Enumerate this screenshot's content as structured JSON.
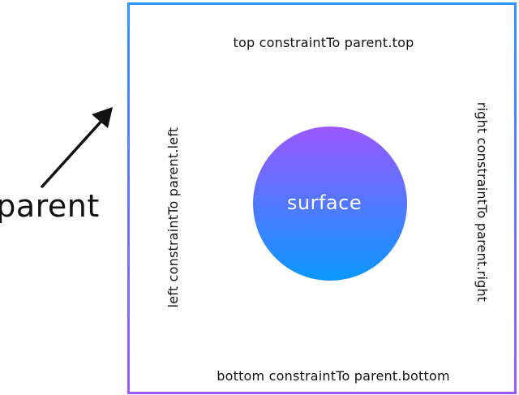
{
  "diagram": {
    "parent_label": "parent",
    "surface_label": "surface",
    "constraints": {
      "top": "top constraintTo parent.top",
      "bottom": "bottom constraintTo parent.bottom",
      "left": "left constraintTo parent.left",
      "right": "right constraintTo parent.right"
    }
  },
  "colors": {
    "gradient_top": "#9b58ff",
    "gradient_bottom": "#0a97ff",
    "text": "#111111",
    "surface_text": "#ffffff"
  }
}
